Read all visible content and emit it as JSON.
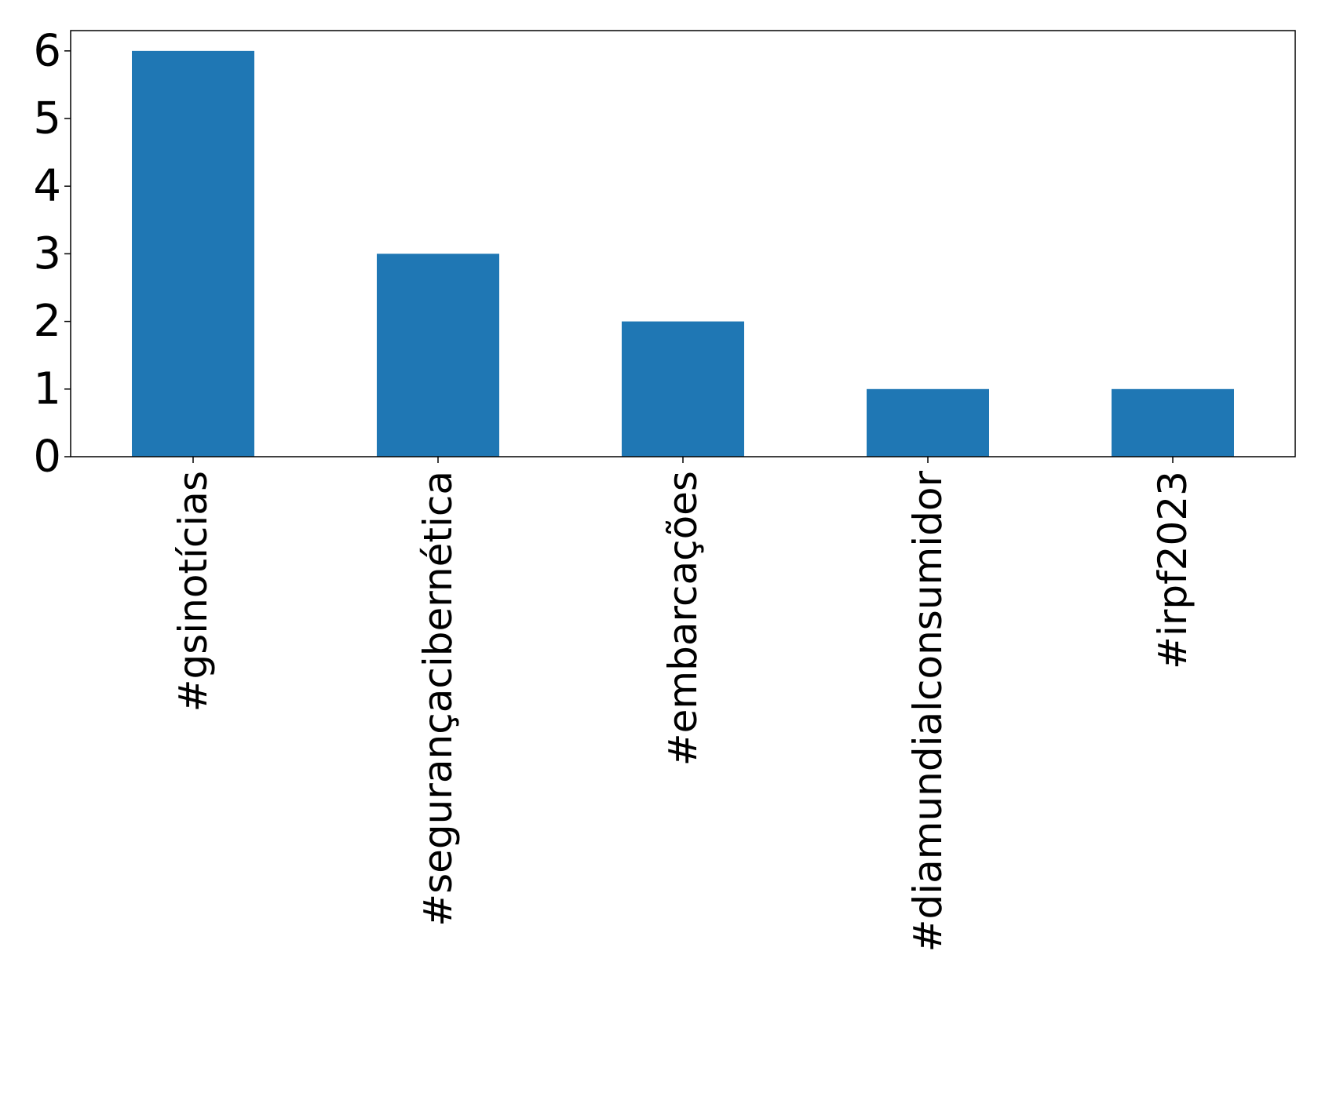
{
  "chart_data": {
    "type": "bar",
    "title": "",
    "xlabel": "",
    "ylabel": "",
    "categories": [
      "#gsinotícias",
      "#segurançacibernética",
      "#embarcações",
      "#diamundialconsumidor",
      "#irpf2023"
    ],
    "values": [
      6,
      3,
      2,
      1,
      1
    ],
    "ylim": [
      0,
      6.3
    ],
    "yticks": [
      "0",
      "1",
      "2",
      "3",
      "4",
      "5",
      "6"
    ],
    "grid": false,
    "legend": "none",
    "bar_color": "#1f77b4",
    "axis_color": "#000000"
  }
}
